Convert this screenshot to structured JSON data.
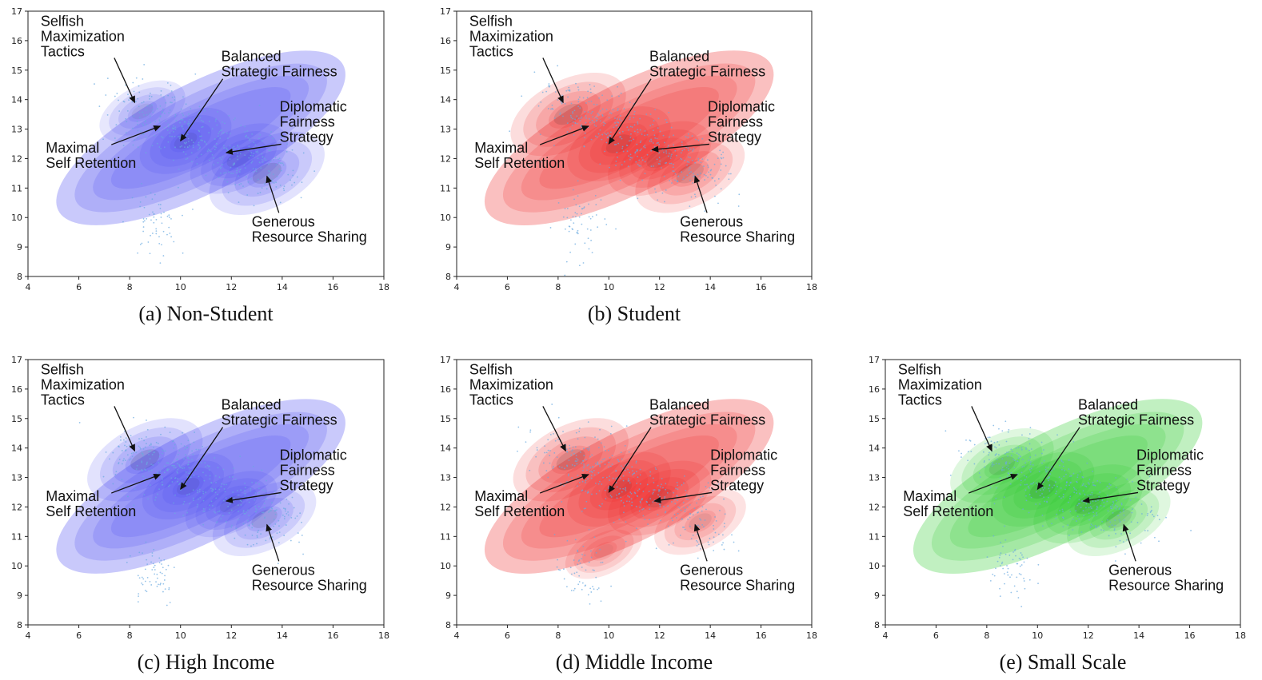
{
  "chart_data": [
    {
      "id": "a",
      "type": "scatter",
      "overlay": "kde",
      "color": "#3d3df0",
      "caption": "(a) Non-Student",
      "xlim": [
        4,
        18
      ],
      "ylim": [
        8,
        17
      ],
      "xticks": [
        4,
        6,
        8,
        10,
        12,
        14,
        16,
        18
      ],
      "yticks": [
        8,
        9,
        10,
        11,
        12,
        13,
        14,
        15,
        16,
        17
      ],
      "clusters": [
        {
          "x": 8.5,
          "y": 13.6,
          "w": 0.5
        },
        {
          "x": 10.2,
          "y": 12.6,
          "w": 0.6
        },
        {
          "x": 12.3,
          "y": 12.0,
          "w": 0.7
        },
        {
          "x": 13.4,
          "y": 11.5,
          "w": 1.0
        }
      ],
      "annotations": [
        {
          "lines": [
            "Selfish",
            "Maximization",
            "Tactics"
          ],
          "text": [
            4.5,
            16.5
          ],
          "target": [
            8.2,
            13.9
          ]
        },
        {
          "lines": [
            "Balanced",
            "Strategic Fairness"
          ],
          "text": [
            11.6,
            15.3
          ],
          "target": [
            10.0,
            12.6
          ]
        },
        {
          "lines": [
            "Diplomatic",
            "Fairness",
            "Strategy"
          ],
          "text": [
            13.9,
            13.6
          ],
          "target": [
            11.8,
            12.2
          ]
        },
        {
          "lines": [
            "Maximal",
            "Self Retention"
          ],
          "text": [
            4.7,
            12.2
          ],
          "target": [
            9.2,
            13.1
          ]
        },
        {
          "lines": [
            "Generous",
            "Resource Sharing"
          ],
          "text": [
            12.8,
            9.7
          ],
          "target": [
            13.4,
            11.4
          ]
        }
      ]
    },
    {
      "id": "b",
      "type": "scatter",
      "overlay": "kde",
      "color": "#ee1c1c",
      "caption": "(b) Student",
      "xlim": [
        4,
        18
      ],
      "ylim": [
        8,
        17
      ],
      "xticks": [
        4,
        6,
        8,
        10,
        12,
        14,
        16,
        18
      ],
      "yticks": [
        8,
        9,
        10,
        11,
        12,
        13,
        14,
        15,
        16,
        17
      ],
      "clusters": [
        {
          "x": 8.4,
          "y": 13.5,
          "w": 1.0
        },
        {
          "x": 10.4,
          "y": 12.5,
          "w": 0.8
        },
        {
          "x": 12.0,
          "y": 12.0,
          "w": 0.8
        },
        {
          "x": 13.2,
          "y": 11.5,
          "w": 0.9
        }
      ],
      "annotations": [
        {
          "lines": [
            "Selfish",
            "Maximization",
            "Tactics"
          ],
          "text": [
            4.5,
            16.5
          ],
          "target": [
            8.2,
            13.9
          ]
        },
        {
          "lines": [
            "Balanced",
            "Strategic Fairness"
          ],
          "text": [
            11.6,
            15.3
          ],
          "target": [
            10.0,
            12.5
          ]
        },
        {
          "lines": [
            "Diplomatic",
            "Fairness",
            "Strategy"
          ],
          "text": [
            13.9,
            13.6
          ],
          "target": [
            11.7,
            12.3
          ]
        },
        {
          "lines": [
            "Maximal",
            "Self Retention"
          ],
          "text": [
            4.7,
            12.2
          ],
          "target": [
            9.2,
            13.1
          ]
        },
        {
          "lines": [
            "Generous",
            "Resource Sharing"
          ],
          "text": [
            12.8,
            9.7
          ],
          "target": [
            13.4,
            11.4
          ]
        }
      ]
    },
    {
      "id": "c",
      "type": "scatter",
      "overlay": "kde",
      "color": "#3d3df0",
      "caption": "(c) High Income",
      "xlim": [
        4,
        18
      ],
      "ylim": [
        8,
        17
      ],
      "xticks": [
        4,
        6,
        8,
        10,
        12,
        14,
        16,
        18
      ],
      "yticks": [
        8,
        9,
        10,
        11,
        12,
        13,
        14,
        15,
        16,
        17
      ],
      "clusters": [
        {
          "x": 8.6,
          "y": 13.6,
          "w": 1.0
        },
        {
          "x": 10.3,
          "y": 12.7,
          "w": 0.6
        },
        {
          "x": 12.0,
          "y": 12.1,
          "w": 0.6
        },
        {
          "x": 13.3,
          "y": 11.6,
          "w": 0.8
        }
      ],
      "annotations": [
        {
          "lines": [
            "Selfish",
            "Maximization",
            "Tactics"
          ],
          "text": [
            4.5,
            16.5
          ],
          "target": [
            8.2,
            13.9
          ]
        },
        {
          "lines": [
            "Balanced",
            "Strategic Fairness"
          ],
          "text": [
            11.6,
            15.3
          ],
          "target": [
            10.0,
            12.6
          ]
        },
        {
          "lines": [
            "Diplomatic",
            "Fairness",
            "Strategy"
          ],
          "text": [
            13.9,
            13.6
          ],
          "target": [
            11.8,
            12.2
          ]
        },
        {
          "lines": [
            "Maximal",
            "Self Retention"
          ],
          "text": [
            4.7,
            12.2
          ],
          "target": [
            9.2,
            13.1
          ]
        },
        {
          "lines": [
            "Generous",
            "Resource Sharing"
          ],
          "text": [
            12.8,
            9.7
          ],
          "target": [
            13.4,
            11.4
          ]
        }
      ]
    },
    {
      "id": "d",
      "type": "scatter",
      "overlay": "kde",
      "color": "#ee1c1c",
      "caption": "(d) Middle Income",
      "xlim": [
        4,
        18
      ],
      "ylim": [
        8,
        17
      ],
      "xticks": [
        4,
        6,
        8,
        10,
        12,
        14,
        16,
        18
      ],
      "yticks": [
        8,
        9,
        10,
        11,
        12,
        13,
        14,
        15,
        16,
        17
      ],
      "clusters": [
        {
          "x": 8.5,
          "y": 13.6,
          "w": 1.0
        },
        {
          "x": 10.4,
          "y": 12.6,
          "w": 0.8
        },
        {
          "x": 12.0,
          "y": 12.3,
          "w": 0.8
        },
        {
          "x": 13.6,
          "y": 11.5,
          "w": 0.6
        },
        {
          "x": 9.8,
          "y": 10.5,
          "w": 0.35
        }
      ],
      "annotations": [
        {
          "lines": [
            "Selfish",
            "Maximization",
            "Tactics"
          ],
          "text": [
            4.5,
            16.5
          ],
          "target": [
            8.3,
            13.9
          ]
        },
        {
          "lines": [
            "Balanced",
            "Strategic Fairness"
          ],
          "text": [
            11.6,
            15.3
          ],
          "target": [
            10.0,
            12.5
          ]
        },
        {
          "lines": [
            "Diplomatic",
            "Fairness",
            "Strategy"
          ],
          "text": [
            14.0,
            13.6
          ],
          "target": [
            11.8,
            12.2
          ]
        },
        {
          "lines": [
            "Maximal",
            "Self Retention"
          ],
          "text": [
            4.7,
            12.2
          ],
          "target": [
            9.2,
            13.1
          ]
        },
        {
          "lines": [
            "Generous",
            "Resource Sharing"
          ],
          "text": [
            12.8,
            9.7
          ],
          "target": [
            13.4,
            11.4
          ]
        }
      ]
    },
    {
      "id": "e",
      "type": "scatter",
      "overlay": "kde",
      "color": "#1fc81f",
      "caption": "(e) Small Scale",
      "xlim": [
        4,
        18
      ],
      "ylim": [
        8,
        17
      ],
      "xticks": [
        4,
        6,
        8,
        10,
        12,
        14,
        16,
        18
      ],
      "yticks": [
        8,
        9,
        10,
        11,
        12,
        13,
        14,
        15,
        16,
        17
      ],
      "clusters": [
        {
          "x": 8.6,
          "y": 13.4,
          "w": 0.8
        },
        {
          "x": 10.2,
          "y": 12.6,
          "w": 0.8
        },
        {
          "x": 12.0,
          "y": 12.1,
          "w": 0.9
        },
        {
          "x": 13.2,
          "y": 11.6,
          "w": 0.8
        }
      ],
      "annotations": [
        {
          "lines": [
            "Selfish",
            "Maximization",
            "Tactics"
          ],
          "text": [
            4.5,
            16.5
          ],
          "target": [
            8.2,
            13.9
          ]
        },
        {
          "lines": [
            "Balanced",
            "Strategic Fairness"
          ],
          "text": [
            11.6,
            15.3
          ],
          "target": [
            10.0,
            12.6
          ]
        },
        {
          "lines": [
            "Diplomatic",
            "Fairness",
            "Strategy"
          ],
          "text": [
            13.9,
            13.6
          ],
          "target": [
            11.8,
            12.2
          ]
        },
        {
          "lines": [
            "Maximal",
            "Self Retention"
          ],
          "text": [
            4.7,
            12.2
          ],
          "target": [
            9.2,
            13.1
          ]
        },
        {
          "lines": [
            "Generous",
            "Resource Sharing"
          ],
          "text": [
            12.8,
            9.7
          ],
          "target": [
            13.4,
            11.4
          ]
        }
      ]
    }
  ]
}
